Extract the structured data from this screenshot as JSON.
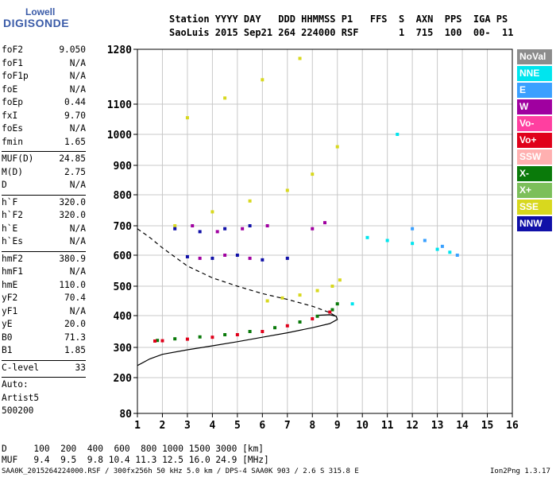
{
  "logo": {
    "top": "Lowell",
    "bottom": "DIGISONDE"
  },
  "header": {
    "labels": "Station YYYY DAY   DDD HHMMSS P1   FFS  S  AXN  PPS  IGA PS",
    "values": "SaoLuis 2015 Sep21 264 224000 RSF       1  715  100  00-  11"
  },
  "params": {
    "group1": [
      {
        "name": "foF2",
        "value": "9.050"
      },
      {
        "name": "foF1",
        "value": "N/A"
      },
      {
        "name": "foF1p",
        "value": "N/A"
      },
      {
        "name": "foE",
        "value": "N/A"
      },
      {
        "name": "foEp",
        "value": "0.44"
      },
      {
        "name": "fxI",
        "value": "9.70"
      },
      {
        "name": "foEs",
        "value": "N/A"
      },
      {
        "name": "fmin",
        "value": "1.65"
      }
    ],
    "group2": [
      {
        "name": "MUF(D)",
        "value": "24.85"
      },
      {
        "name": "M(D)",
        "value": "2.75"
      },
      {
        "name": "D",
        "value": "N/A"
      }
    ],
    "group3": [
      {
        "name": "h`F",
        "value": "320.0"
      },
      {
        "name": "h`F2",
        "value": "320.0"
      },
      {
        "name": "h`E",
        "value": "N/A"
      },
      {
        "name": "h`Es",
        "value": "N/A"
      }
    ],
    "group4": [
      {
        "name": "hmF2",
        "value": "380.9"
      },
      {
        "name": "hmF1",
        "value": "N/A"
      },
      {
        "name": "hmE",
        "value": "110.0"
      },
      {
        "name": "yF2",
        "value": "70.4"
      },
      {
        "name": "yF1",
        "value": "N/A"
      },
      {
        "name": "yE",
        "value": "20.0"
      },
      {
        "name": "B0",
        "value": "71.3"
      },
      {
        "name": "B1",
        "value": "1.85"
      }
    ],
    "clevel": {
      "name": "C-level",
      "value": "33"
    },
    "auto": [
      "Auto:",
      "Artist5",
      "500200"
    ]
  },
  "legend": [
    {
      "label": "NoVal",
      "color": "#8c8c8c"
    },
    {
      "label": "NNE",
      "color": "#00e5ee"
    },
    {
      "label": "E",
      "color": "#3aa0ff"
    },
    {
      "label": "W",
      "color": "#a000a0"
    },
    {
      "label": "Vo-",
      "color": "#ff3fa0"
    },
    {
      "label": "Vo+",
      "color": "#e0001a"
    },
    {
      "label": "SSW",
      "color": "#ffb0b0"
    },
    {
      "label": "X-",
      "color": "#0a7a0a"
    },
    {
      "label": "X+",
      "color": "#7cbf5a"
    },
    {
      "label": "SSE",
      "color": "#d8d81e"
    },
    {
      "label": "NNW",
      "color": "#1010a8"
    }
  ],
  "muf_table": {
    "row1": "D     100  200  400  600  800 1000 1500 3000 [km]",
    "row2": "MUF   9.4  9.5  9.8 10.4 11.3 12.5 16.0 24.9 [MHz]"
  },
  "footer": {
    "left": "SAA0K_2015264224000.RSF / 300fx256h 50 kHz 5.0 km / DPS-4 SAA0K 903 / 2.6 S 315.8 E",
    "right": "Ion2Png 1.3.17"
  },
  "chart_data": {
    "type": "scatter",
    "x_ticks": [
      1,
      2,
      3,
      4,
      5,
      6,
      7,
      8,
      9,
      10,
      11,
      12,
      13,
      14,
      15,
      16
    ],
    "y_ticks": [
      80,
      200,
      300,
      400,
      500,
      600,
      700,
      800,
      900,
      1000,
      1100,
      1280
    ],
    "xlim": [
      1,
      16
    ],
    "ylim": [
      80,
      1280
    ],
    "y_scale": "nonlinear (ionogram virtual height)",
    "grid": true,
    "series": [
      {
        "name": "X-",
        "color": "#0a7a0a",
        "points": [
          [
            1.8,
            322
          ],
          [
            2.5,
            327
          ],
          [
            3.5,
            333
          ],
          [
            4.5,
            340
          ],
          [
            5.5,
            350
          ],
          [
            6.5,
            362
          ],
          [
            7.5,
            380
          ],
          [
            8.2,
            398
          ],
          [
            8.8,
            420
          ],
          [
            9.0,
            440
          ]
        ]
      },
      {
        "name": "Vo+",
        "color": "#e0001a",
        "points": [
          [
            1.7,
            320
          ],
          [
            2.0,
            321
          ],
          [
            3.0,
            326
          ],
          [
            4.0,
            332
          ],
          [
            5.0,
            340
          ],
          [
            6.0,
            350
          ],
          [
            7.0,
            368
          ],
          [
            8.0,
            390
          ],
          [
            8.7,
            412
          ]
        ]
      },
      {
        "name": "SSE",
        "color": "#d8d81e",
        "points": [
          [
            6.2,
            450
          ],
          [
            6.8,
            460
          ],
          [
            7.5,
            470
          ],
          [
            8.2,
            485
          ],
          [
            8.8,
            500
          ],
          [
            9.1,
            520
          ],
          [
            2.5,
            700
          ],
          [
            4.0,
            745
          ],
          [
            5.5,
            780
          ],
          [
            7.0,
            815
          ],
          [
            8.0,
            870
          ],
          [
            9.0,
            960
          ],
          [
            3.0,
            1055
          ],
          [
            4.5,
            1120
          ],
          [
            6.0,
            1180
          ],
          [
            7.5,
            1250
          ]
        ]
      },
      {
        "name": "NNW",
        "color": "#1010a8",
        "points": [
          [
            2.5,
            690
          ],
          [
            3.5,
            680
          ],
          [
            4.5,
            690
          ],
          [
            5.5,
            700
          ],
          [
            3.0,
            595
          ],
          [
            4.0,
            590
          ],
          [
            5.0,
            600
          ],
          [
            6.0,
            585
          ],
          [
            7.0,
            590
          ]
        ]
      },
      {
        "name": "W",
        "color": "#a000a0",
        "points": [
          [
            3.2,
            700
          ],
          [
            4.2,
            680
          ],
          [
            5.2,
            690
          ],
          [
            6.2,
            700
          ],
          [
            3.5,
            590
          ],
          [
            4.5,
            600
          ],
          [
            5.5,
            590
          ],
          [
            8.0,
            690
          ],
          [
            8.5,
            710
          ]
        ]
      },
      {
        "name": "NNE",
        "color": "#00e5ee",
        "points": [
          [
            10.2,
            660
          ],
          [
            11.0,
            650
          ],
          [
            12.0,
            640
          ],
          [
            13.0,
            620
          ],
          [
            13.5,
            610
          ],
          [
            11.4,
            1000
          ],
          [
            9.6,
            440
          ]
        ]
      },
      {
        "name": "E",
        "color": "#3aa0ff",
        "points": [
          [
            12.5,
            650
          ],
          [
            13.2,
            630
          ],
          [
            13.8,
            600
          ],
          [
            12.0,
            690
          ]
        ]
      }
    ],
    "profile_curves": [
      {
        "name": "profile-solid",
        "style": "solid",
        "points": [
          [
            1.0,
            240
          ],
          [
            1.5,
            262
          ],
          [
            2.0,
            277
          ],
          [
            3.0,
            292
          ],
          [
            4.0,
            305
          ],
          [
            5.0,
            318
          ],
          [
            6.0,
            332
          ],
          [
            7.0,
            346
          ],
          [
            8.0,
            362
          ],
          [
            8.7,
            375
          ],
          [
            9.0,
            388
          ],
          [
            8.95,
            398
          ],
          [
            8.7,
            403
          ],
          [
            8.2,
            401
          ]
        ]
      },
      {
        "name": "profile-dashed",
        "style": "dashed",
        "points": [
          [
            1.0,
            690
          ],
          [
            1.5,
            660
          ],
          [
            2.0,
            625
          ],
          [
            3.0,
            565
          ],
          [
            4.0,
            527
          ],
          [
            5.0,
            500
          ],
          [
            6.0,
            475
          ],
          [
            7.0,
            455
          ],
          [
            8.0,
            432
          ],
          [
            8.7,
            410
          ],
          [
            9.0,
            395
          ]
        ]
      }
    ]
  }
}
